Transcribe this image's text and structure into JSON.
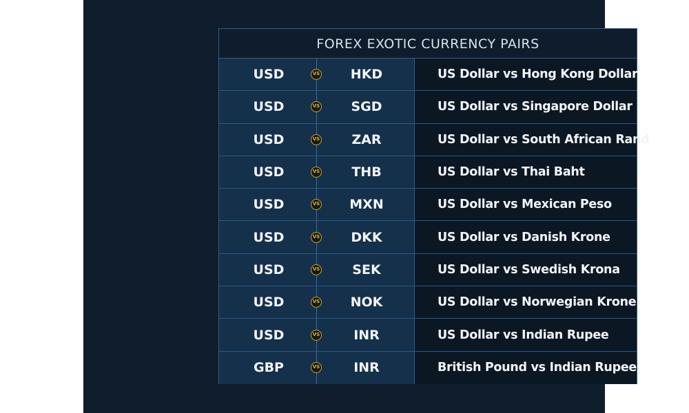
{
  "title": "FOREX EXOTIC CURRENCY PAIRS",
  "vs_label": "VS",
  "colors": {
    "panel": "#0f1d2c",
    "left_cell": "#15304a",
    "right_cell": "#0c1724",
    "border": "#2f5f8a",
    "vs_badge": "#c9a23a"
  },
  "pairs": [
    {
      "base": "USD",
      "quote": "HKD",
      "description": "US Dollar vs Hong Kong Dollar"
    },
    {
      "base": "USD",
      "quote": "SGD",
      "description": "US Dollar vs Singapore Dollar"
    },
    {
      "base": "USD",
      "quote": "ZAR",
      "description": "US Dollar vs South African Rand"
    },
    {
      "base": "USD",
      "quote": "THB",
      "description": "US Dollar vs Thai Baht"
    },
    {
      "base": "USD",
      "quote": "MXN",
      "description": "US Dollar vs Mexican Peso"
    },
    {
      "base": "USD",
      "quote": "DKK",
      "description": "US Dollar vs Danish Krone"
    },
    {
      "base": "USD",
      "quote": "SEK",
      "description": "US Dollar vs Swedish Krona"
    },
    {
      "base": "USD",
      "quote": "NOK",
      "description": "US Dollar vs Norwegian Krone"
    },
    {
      "base": "USD",
      "quote": "INR",
      "description": "US Dollar vs Indian Rupee"
    },
    {
      "base": "GBP",
      "quote": "INR",
      "description": "British Pound vs Indian Rupee"
    }
  ]
}
